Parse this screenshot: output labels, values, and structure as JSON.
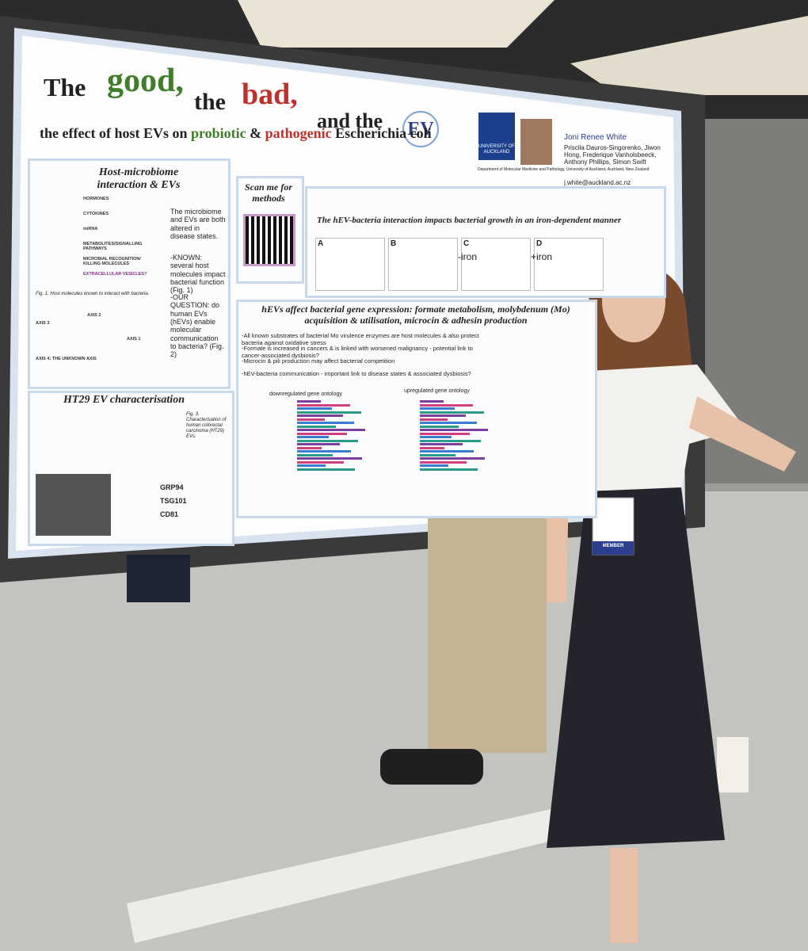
{
  "poster": {
    "title": {
      "word1": "The",
      "good": "good,",
      "word2": "the",
      "bad": "bad,",
      "word3": "and the",
      "ev": "EV"
    },
    "subtitle": {
      "part1": "the effect of host EVs on",
      "probiotic": "probiotic",
      "amp": "&",
      "pathogenic": "pathogenic",
      "part2": "Escherichia coli"
    },
    "authors": {
      "lead": "Joni Renee White",
      "others": "Priscila Dauros-Singorenko, Jiwon Hong, Frederique Vanholsbeeck, Anthony Phillips, Simon Swift",
      "email": "j.white@auckland.ac.nz",
      "affiliation": "Department of Molecular Medicine and Pathology, University of Auckland, Auckland, New Zealand"
    },
    "logo": "UNIVERSITY OF AUCKLAND",
    "sections": [
      {
        "heading": "Host-microbiome interaction & EVs",
        "body": [
          "The microbiome and EVs are both altered in disease states.",
          "-KNOWN: several host molecules impact bacterial function (Fig. 1)",
          "-OUR QUESTION: do human EVs (hEVs) enable molecular communication to bacteria? (Fig. 2)"
        ],
        "labels": [
          "HORMONES",
          "CYTOKINES",
          "miRNA",
          "METABOLITES/SIGNALLING PATHWAYS",
          "MICROBIAL RECOGNITION/ KILLING MOLECULES",
          "EXTRACELLULAR VESICLES?",
          "AXIS 1",
          "AXIS 2",
          "AXIS 3",
          "AXIS 4: THE UNKNOWN AXIS"
        ],
        "caption": "Fig. 1. Host molecules known to interact with bacteria."
      },
      {
        "heading": "Scan me for methods"
      },
      {
        "heading": "The hEV-bacteria interaction impacts bacterial growth in an iron-dependent manner",
        "panels": [
          "A",
          "B",
          "C",
          "D"
        ],
        "conditions": [
          "-iron",
          "+iron"
        ]
      },
      {
        "heading": "hEVs affect bacterial gene expression: formate metabolism, molybdenum (Mo) acquisition & utilisation, microcin & adhesin production",
        "body": [
          "-All known substrates of bacterial Mo virulence enzymes are host molecules & also protect bacteria against oxidative stress",
          "-Formate is increased in cancers & is linked with worsened malignancy - potential link to cancer-associated dysbiosis?",
          "-Microcin & pili production may affect bacterial competition",
          "-hEV-bacteria communication - important link to disease states & associated dysbiosis?"
        ],
        "charts": [
          "downregulated gene ontology",
          "upregulated gene ontology"
        ]
      },
      {
        "heading": "HT29 EV characterisation",
        "markers": [
          "GRP94",
          "TSG101",
          "CD81"
        ],
        "caption": "Fig. 3. Characterisation of human colorectal carcinoma (HT29) EVs."
      }
    ],
    "badge": "MEMBER"
  }
}
